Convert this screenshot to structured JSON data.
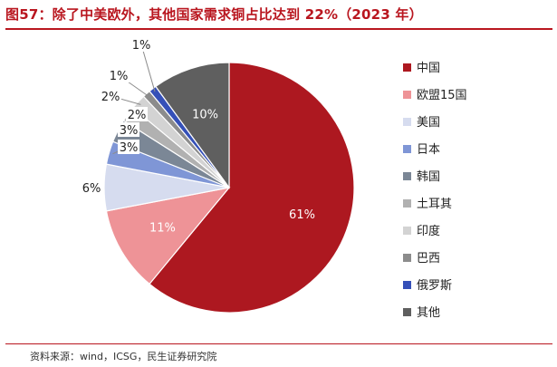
{
  "figure": {
    "title": "图57：除了中美欧外，其他国家需求铜占比达到 22%（2023 年）",
    "source": "资料来源：wind，ICSG，民生证券研究院"
  },
  "chart_data": {
    "type": "pie",
    "title": "",
    "legend_position": "right",
    "slices": [
      {
        "name": "中国",
        "value": 61,
        "label": "61%",
        "color": "#ad1820"
      },
      {
        "name": "欧盟15国",
        "value": 11,
        "label": "11%",
        "color": "#ee9397"
      },
      {
        "name": "美国",
        "value": 6,
        "label": "6%",
        "color": "#d6dcef"
      },
      {
        "name": "日本",
        "value": 3,
        "label": "3%",
        "color": "#7f96d6"
      },
      {
        "name": "韩国",
        "value": 3,
        "label": "3%",
        "color": "#7b8796"
      },
      {
        "name": "土耳其",
        "value": 2,
        "label": "2%",
        "color": "#b1b1b1"
      },
      {
        "name": "印度",
        "value": 2,
        "label": "2%",
        "color": "#d3d3d3"
      },
      {
        "name": "巴西",
        "value": 1,
        "label": "1%",
        "color": "#8c8c8c"
      },
      {
        "name": "俄罗斯",
        "value": 1,
        "label": "1%",
        "color": "#3550b8"
      },
      {
        "name": "其他",
        "value": 10,
        "label": "10%",
        "color": "#5f5f5f"
      }
    ]
  }
}
